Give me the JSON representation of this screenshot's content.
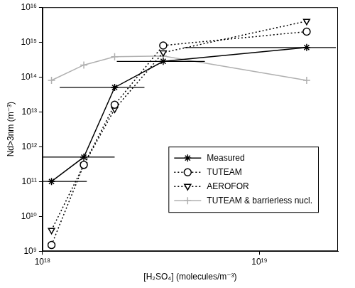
{
  "chart_data": {
    "type": "line",
    "x_label": "[H₂SO₄] (molecules/m⁻³)",
    "y_label": "Nd>3nm (m⁻³)",
    "x": [
      1.1e+18,
      1.55e+18,
      2.15e+18,
      3.6e+18,
      1.65e+19
    ],
    "series": [
      {
        "name": "Measured",
        "color": "#000000",
        "marker": "star",
        "line_style": "solid",
        "values": [
          100000000000.0,
          500000000000.0,
          50000000000000.0,
          280000000000000.0,
          700000000000000.0
        ],
        "x_low": [
          1e+18,
          1e+18,
          1.2e+18,
          2.2e+18,
          4.5e+18
        ],
        "x_high": [
          1.6e+18,
          2.15e+18,
          2.95e+18,
          5.6e+18,
          2.25e+19
        ]
      },
      {
        "name": "TUTEAM",
        "color": "#000000",
        "marker": "circle",
        "line_style": "dotted",
        "values": [
          1500000000.0,
          300000000000.0,
          16000000000000.0,
          800000000000000.0,
          2000000000000000.0
        ]
      },
      {
        "name": "AEROFOR",
        "color": "#000000",
        "marker": "triangle_down",
        "line_style": "dotted",
        "values": [
          4000000000.0,
          300000000000.0,
          12000000000000.0,
          500000000000000.0,
          4000000000000000.0
        ]
      },
      {
        "name": "TUTEAM & barrierless nucl.",
        "color": "#b0b0b0",
        "marker": "cross",
        "line_style": "solid",
        "values": [
          80000000000000.0,
          220000000000000.0,
          380000000000000.0,
          400000000000000.0,
          80000000000000.0
        ]
      }
    ],
    "xlim": [
      1e+18,
      2.3e+19
    ],
    "ylim": [
      1000000000.0,
      1e+16
    ],
    "xticks": [
      {
        "value": 1e+18,
        "label": "10¹⁸"
      },
      {
        "value": 1e+19,
        "label": "10¹⁹"
      }
    ],
    "yticks": [
      {
        "value": 1000000000.0,
        "label": "10⁹"
      },
      {
        "value": 10000000000.0,
        "label": "10¹⁰"
      },
      {
        "value": 100000000000.0,
        "label": "10¹¹"
      },
      {
        "value": 1000000000000.0,
        "label": "10¹²"
      },
      {
        "value": 10000000000000.0,
        "label": "10¹³"
      },
      {
        "value": 100000000000000.0,
        "label": "10¹⁴"
      },
      {
        "value": 1000000000000000.0,
        "label": "10¹⁵"
      },
      {
        "value": 1e+16,
        "label": "10¹⁶"
      }
    ],
    "log": true,
    "grid": false,
    "legend": "lower right"
  }
}
